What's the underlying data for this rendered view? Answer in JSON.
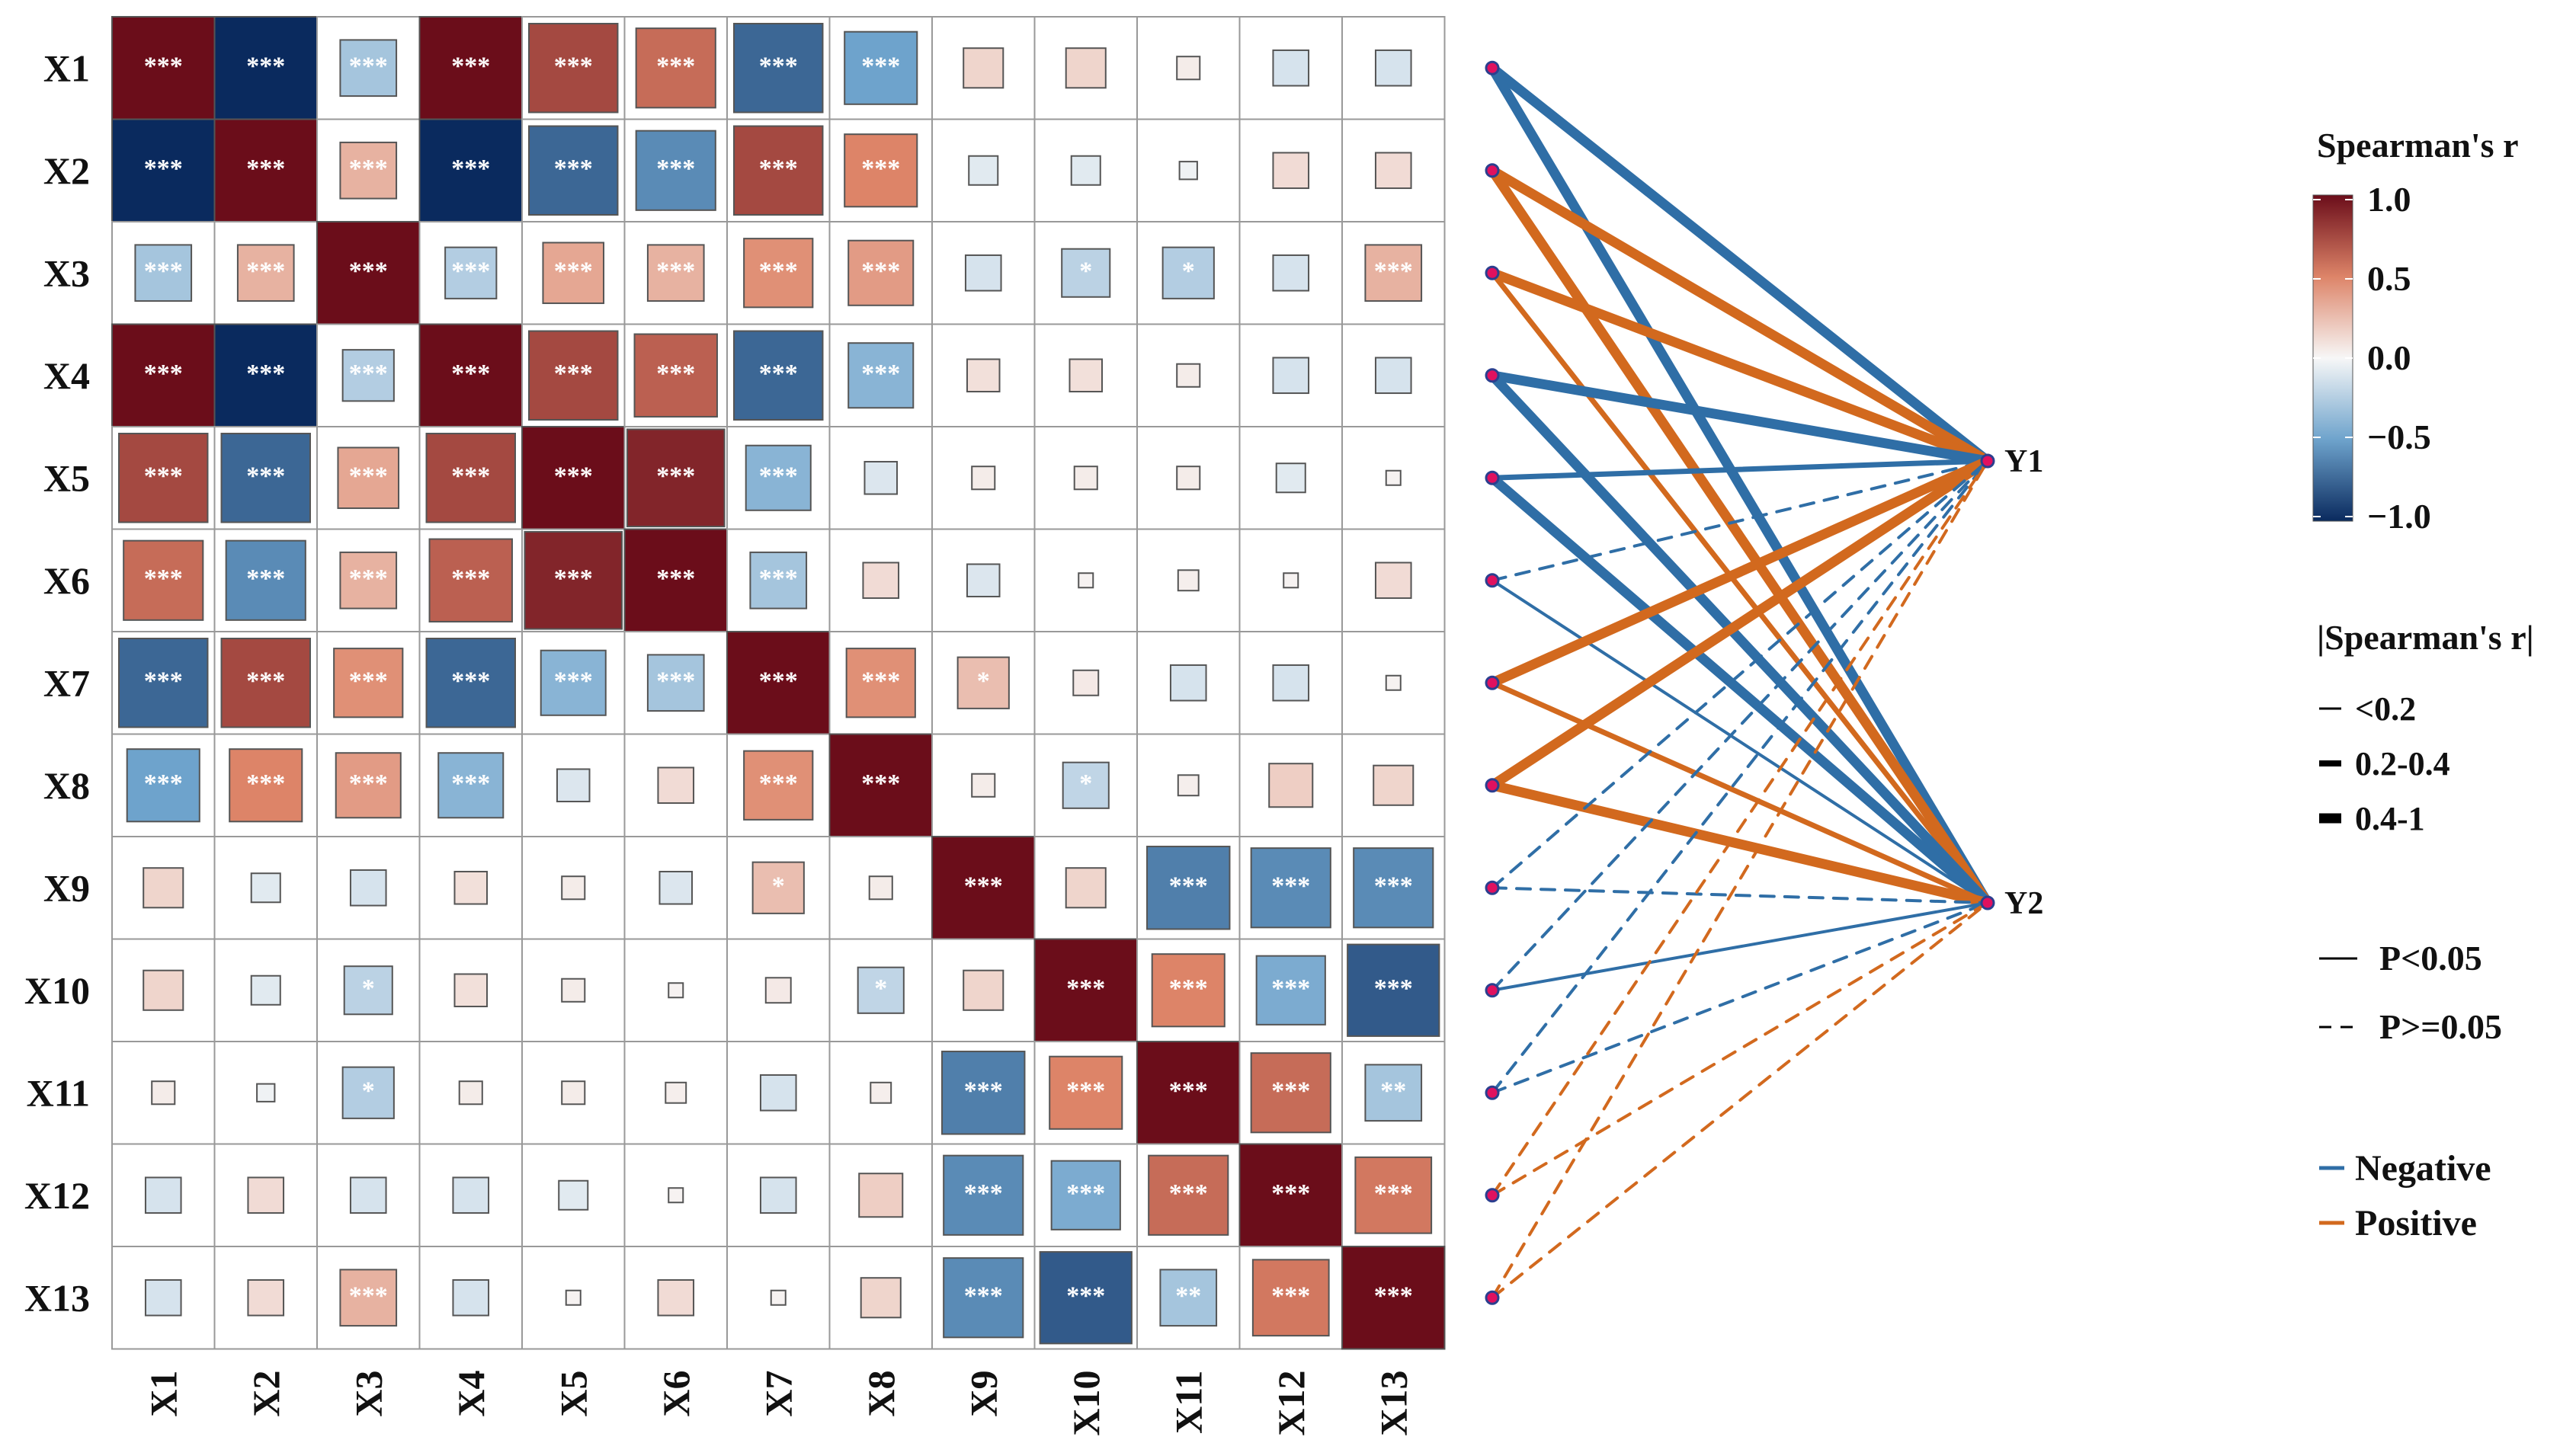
{
  "chart_data": {
    "type": "heatmap",
    "title": "",
    "variables": [
      "X1",
      "X2",
      "X3",
      "X4",
      "X5",
      "X6",
      "X7",
      "X8",
      "X9",
      "X10",
      "X11",
      "X12",
      "X13"
    ],
    "matrix": {
      "description": "Spearman's r between predictors",
      "values": [
        [
          1.0,
          -1.0,
          -0.3,
          1.0,
          0.75,
          0.6,
          -0.75,
          -0.5,
          0.15,
          0.15,
          0.05,
          -0.12,
          -0.12
        ],
        [
          -1.0,
          1.0,
          0.3,
          -1.0,
          -0.75,
          -0.6,
          0.75,
          0.5,
          -0.08,
          -0.08,
          -0.03,
          0.12,
          0.12
        ],
        [
          -0.3,
          0.3,
          1.0,
          -0.25,
          0.35,
          0.3,
          0.45,
          0.4,
          -0.12,
          -0.22,
          -0.25,
          -0.12,
          0.3
        ],
        [
          1.0,
          -1.0,
          -0.25,
          1.0,
          0.75,
          0.65,
          -0.75,
          -0.4,
          0.1,
          0.1,
          0.05,
          -0.12,
          -0.12
        ],
        [
          0.75,
          -0.75,
          0.35,
          0.75,
          1.0,
          0.9,
          -0.4,
          -0.1,
          0.05,
          0.05,
          0.05,
          -0.08,
          0.02
        ],
        [
          0.6,
          -0.6,
          0.3,
          0.65,
          0.9,
          1.0,
          -0.3,
          0.12,
          -0.1,
          0.02,
          0.04,
          0.02,
          0.12
        ],
        [
          -0.75,
          0.75,
          0.45,
          -0.75,
          -0.4,
          -0.3,
          1.0,
          0.45,
          0.25,
          0.06,
          -0.12,
          -0.12,
          0.02
        ],
        [
          -0.5,
          0.5,
          0.4,
          -0.4,
          -0.1,
          0.12,
          0.45,
          1.0,
          0.05,
          -0.2,
          0.04,
          0.18,
          0.15
        ],
        [
          0.15,
          -0.08,
          -0.12,
          0.1,
          0.05,
          -0.1,
          0.25,
          0.05,
          1.0,
          0.15,
          -0.65,
          -0.6,
          -0.6
        ],
        [
          0.15,
          -0.08,
          -0.22,
          0.1,
          0.05,
          0.02,
          0.06,
          -0.2,
          0.15,
          1.0,
          0.5,
          -0.45,
          -0.8
        ],
        [
          0.05,
          -0.03,
          -0.25,
          0.05,
          0.05,
          0.04,
          -0.12,
          0.04,
          -0.65,
          0.5,
          1.0,
          0.6,
          -0.3
        ],
        [
          -0.12,
          0.12,
          -0.12,
          -0.12,
          -0.08,
          0.02,
          -0.12,
          0.18,
          -0.6,
          -0.45,
          0.6,
          1.0,
          0.55
        ],
        [
          -0.12,
          0.12,
          0.3,
          -0.12,
          0.02,
          0.12,
          0.02,
          0.15,
          -0.6,
          -0.8,
          -0.3,
          0.55,
          1.0
        ]
      ],
      "significance": [
        [
          "***",
          "***",
          "***",
          "***",
          "***",
          "***",
          "***",
          "***",
          "",
          "",
          "",
          "",
          ""
        ],
        [
          "***",
          "***",
          "***",
          "***",
          "***",
          "***",
          "***",
          "***",
          "",
          "",
          "",
          "",
          ""
        ],
        [
          "***",
          "***",
          "***",
          "***",
          "***",
          "***",
          "***",
          "***",
          "",
          "*",
          "*",
          "",
          "***"
        ],
        [
          "***",
          "***",
          "***",
          "***",
          "***",
          "***",
          "***",
          "***",
          "",
          "",
          "",
          "",
          ""
        ],
        [
          "***",
          "***",
          "***",
          "***",
          "***",
          "***",
          "***",
          "",
          "",
          "",
          "",
          "",
          ""
        ],
        [
          "***",
          "***",
          "***",
          "***",
          "***",
          "***",
          "***",
          "",
          "",
          "",
          "",
          "",
          ""
        ],
        [
          "***",
          "***",
          "***",
          "***",
          "***",
          "***",
          "***",
          "***",
          "*",
          "",
          "",
          "",
          ""
        ],
        [
          "***",
          "***",
          "***",
          "***",
          "",
          "",
          "***",
          "***",
          "",
          "*",
          "",
          "",
          ""
        ],
        [
          "",
          "",
          "",
          "",
          "",
          "",
          "*",
          "",
          "***",
          "",
          "***",
          "***",
          "***"
        ],
        [
          "",
          "",
          "*",
          "",
          "",
          "",
          "",
          "*",
          "",
          "***",
          "***",
          "***",
          "***"
        ],
        [
          "",
          "",
          "*",
          "",
          "",
          "",
          "",
          "",
          "***",
          "***",
          "***",
          "***",
          "**"
        ],
        [
          "",
          "",
          "",
          "",
          "",
          "",
          "",
          "",
          "***",
          "***",
          "***",
          "***",
          "***"
        ],
        [
          "",
          "",
          "***",
          "",
          "",
          "",
          "",
          "",
          "***",
          "***",
          "**",
          "***",
          "***"
        ]
      ]
    },
    "targets": [
      "Y1",
      "Y2"
    ],
    "links": [
      {
        "from": "X1",
        "to": "Y1",
        "sign": "Negative",
        "r_class": "0.4-1",
        "p_class": "P<0.05"
      },
      {
        "from": "X1",
        "to": "Y2",
        "sign": "Negative",
        "r_class": "0.4-1",
        "p_class": "P<0.05"
      },
      {
        "from": "X2",
        "to": "Y1",
        "sign": "Positive",
        "r_class": "0.4-1",
        "p_class": "P<0.05"
      },
      {
        "from": "X2",
        "to": "Y2",
        "sign": "Positive",
        "r_class": "0.4-1",
        "p_class": "P<0.05"
      },
      {
        "from": "X3",
        "to": "Y1",
        "sign": "Positive",
        "r_class": "0.4-1",
        "p_class": "P<0.05"
      },
      {
        "from": "X3",
        "to": "Y2",
        "sign": "Positive",
        "r_class": "0.2-0.4",
        "p_class": "P<0.05"
      },
      {
        "from": "X4",
        "to": "Y1",
        "sign": "Negative",
        "r_class": "0.4-1",
        "p_class": "P<0.05"
      },
      {
        "from": "X4",
        "to": "Y2",
        "sign": "Negative",
        "r_class": "0.4-1",
        "p_class": "P<0.05"
      },
      {
        "from": "X5",
        "to": "Y1",
        "sign": "Negative",
        "r_class": "0.2-0.4",
        "p_class": "P<0.05"
      },
      {
        "from": "X5",
        "to": "Y2",
        "sign": "Negative",
        "r_class": "0.4-1",
        "p_class": "P<0.05"
      },
      {
        "from": "X6",
        "to": "Y1",
        "sign": "Negative",
        "r_class": "<0.2",
        "p_class": "P>=0.05"
      },
      {
        "from": "X6",
        "to": "Y2",
        "sign": "Negative",
        "r_class": "<0.2",
        "p_class": "P<0.05"
      },
      {
        "from": "X7",
        "to": "Y1",
        "sign": "Positive",
        "r_class": "0.4-1",
        "p_class": "P<0.05"
      },
      {
        "from": "X7",
        "to": "Y2",
        "sign": "Positive",
        "r_class": "0.2-0.4",
        "p_class": "P<0.05"
      },
      {
        "from": "X8",
        "to": "Y1",
        "sign": "Positive",
        "r_class": "0.4-1",
        "p_class": "P<0.05"
      },
      {
        "from": "X8",
        "to": "Y2",
        "sign": "Positive",
        "r_class": "0.4-1",
        "p_class": "P<0.05"
      },
      {
        "from": "X9",
        "to": "Y1",
        "sign": "Negative",
        "r_class": "<0.2",
        "p_class": "P>=0.05"
      },
      {
        "from": "X9",
        "to": "Y2",
        "sign": "Negative",
        "r_class": "<0.2",
        "p_class": "P>=0.05"
      },
      {
        "from": "X10",
        "to": "Y1",
        "sign": "Negative",
        "r_class": "<0.2",
        "p_class": "P>=0.05"
      },
      {
        "from": "X10",
        "to": "Y2",
        "sign": "Negative",
        "r_class": "<0.2",
        "p_class": "P<0.05"
      },
      {
        "from": "X11",
        "to": "Y1",
        "sign": "Negative",
        "r_class": "<0.2",
        "p_class": "P>=0.05"
      },
      {
        "from": "X11",
        "to": "Y2",
        "sign": "Negative",
        "r_class": "<0.2",
        "p_class": "P>=0.05"
      },
      {
        "from": "X12",
        "to": "Y1",
        "sign": "Positive",
        "r_class": "<0.2",
        "p_class": "P>=0.05"
      },
      {
        "from": "X12",
        "to": "Y2",
        "sign": "Positive",
        "r_class": "<0.2",
        "p_class": "P>=0.05"
      },
      {
        "from": "X13",
        "to": "Y1",
        "sign": "Positive",
        "r_class": "<0.2",
        "p_class": "P>=0.05"
      },
      {
        "from": "X13",
        "to": "Y2",
        "sign": "Positive",
        "r_class": "<0.2",
        "p_class": "P>=0.05"
      }
    ],
    "colors": {
      "negative_line": "#2f6ea6",
      "positive_line": "#d2691e",
      "scale_low": "#0a2a5e",
      "scale_mid": "#f7f7f7",
      "scale_high": "#6b0d1a",
      "node_fill": "#e0115f",
      "node_stroke": "#2b3f8f"
    }
  },
  "legend": {
    "colorbar_title": "Spearman's r",
    "colorbar_ticks": [
      "1.0",
      "0.5",
      "0.0",
      "−0.5",
      "−1.0"
    ],
    "colorbar_tick_values": [
      1.0,
      0.5,
      0.0,
      -0.5,
      -1.0
    ],
    "width_title": "|Spearman's r|",
    "width_items": [
      "<0.2",
      "0.2-0.4",
      "0.4-1"
    ],
    "p_items": [
      "P<0.05",
      "P>=0.05"
    ],
    "sign_items": [
      "Negative",
      "Positive"
    ]
  }
}
